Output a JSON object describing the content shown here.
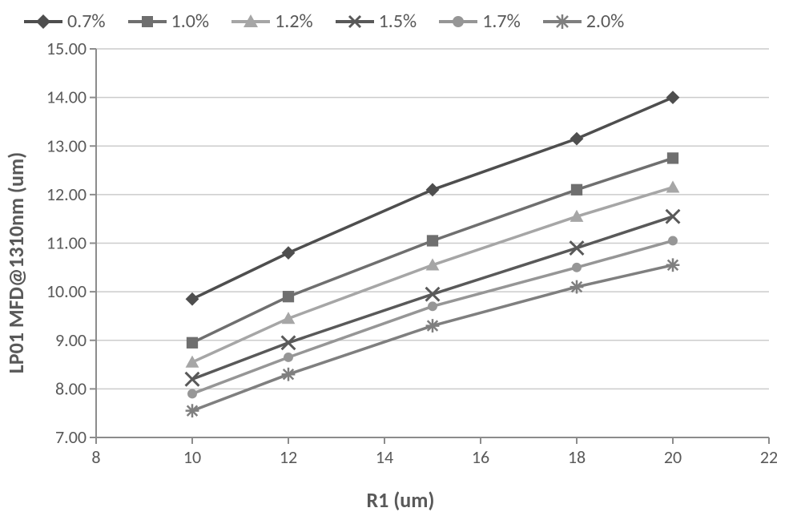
{
  "chart": {
    "type": "line",
    "xlabel": "R1 (um)",
    "ylabel": "LP01 MFD@1310nm (um)",
    "x_ticks": [
      8,
      10,
      12,
      14,
      16,
      18,
      20,
      22
    ],
    "y_ticks": [
      "7.00",
      "8.00",
      "9.00",
      "10.00",
      "11.00",
      "12.00",
      "13.00",
      "14.00",
      "15.00"
    ],
    "xlim": [
      8,
      22
    ],
    "ylim": [
      7.0,
      15.0
    ],
    "tick_fontsize": 22,
    "label_fontsize": 26,
    "legend_fontsize": 24,
    "background_color": "#ffffff",
    "text_color": "#595959",
    "axis_color": "#8c8c8c",
    "grid_color": "#cccccc",
    "grid_horizontal": true,
    "grid_vertical": false,
    "series": [
      {
        "name": "0.7%",
        "marker": "diamond",
        "marker_size": 12,
        "color": "#4e4e4e",
        "x": [
          10,
          12,
          15,
          18,
          20
        ],
        "y": [
          9.85,
          10.8,
          12.1,
          13.15,
          14.0
        ]
      },
      {
        "name": "1.0%",
        "marker": "square",
        "marker_size": 12,
        "color": "#6f6f6f",
        "x": [
          10,
          12,
          15,
          18,
          20
        ],
        "y": [
          8.95,
          9.9,
          11.05,
          12.1,
          12.75
        ]
      },
      {
        "name": "1.2%",
        "marker": "triangle",
        "marker_size": 12,
        "color": "#a6a6a6",
        "x": [
          10,
          12,
          15,
          18,
          20
        ],
        "y": [
          8.55,
          9.45,
          10.55,
          11.55,
          12.15
        ]
      },
      {
        "name": "1.5%",
        "marker": "x",
        "marker_size": 12,
        "color": "#595959",
        "x": [
          10,
          12,
          15,
          18,
          20
        ],
        "y": [
          8.2,
          8.95,
          9.95,
          10.9,
          11.55
        ]
      },
      {
        "name": "1.7%",
        "marker": "circle",
        "marker_size": 10,
        "color": "#969696",
        "x": [
          10,
          12,
          15,
          18,
          20
        ],
        "y": [
          7.9,
          8.65,
          9.7,
          10.5,
          11.05
        ]
      },
      {
        "name": "2.0%",
        "marker": "asterisk",
        "marker_size": 12,
        "color": "#7f7f7f",
        "x": [
          10,
          12,
          15,
          18,
          20
        ],
        "y": [
          7.55,
          8.3,
          9.3,
          10.1,
          10.55
        ]
      }
    ],
    "line_width": 3.5
  }
}
